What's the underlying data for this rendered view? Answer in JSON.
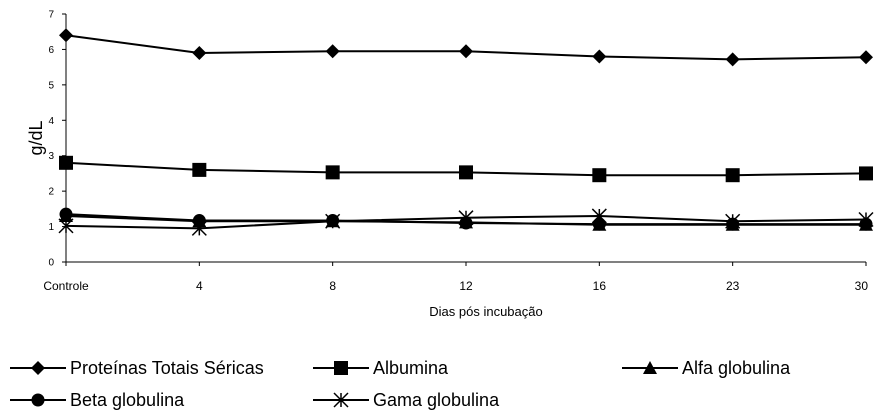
{
  "chart_data": {
    "type": "line",
    "title": "",
    "xlabel": "Dias pós incubação",
    "ylabel": "g/dL",
    "categories": [
      "Controle",
      "4",
      "8",
      "12",
      "16",
      "23",
      "30"
    ],
    "ylim": [
      0,
      7
    ],
    "yticks": [
      "0",
      "1",
      "2",
      "3",
      "4",
      "5",
      "6",
      "7"
    ],
    "grid": false,
    "legend_position": "bottom",
    "series": [
      {
        "name": "Proteínas Totais Séricas",
        "marker": "diamond",
        "color": "#000000",
        "values": [
          6.4,
          5.9,
          5.95,
          5.95,
          5.8,
          5.72,
          5.78
        ]
      },
      {
        "name": "Albumina",
        "marker": "square",
        "color": "#000000",
        "values": [
          2.8,
          2.6,
          2.53,
          2.53,
          2.45,
          2.45,
          2.5
        ]
      },
      {
        "name": "Alfa globulina",
        "marker": "triangle",
        "color": "#000000",
        "values": [
          1.3,
          1.15,
          1.15,
          1.12,
          1.05,
          1.05,
          1.05
        ]
      },
      {
        "name": "Beta globulina",
        "marker": "circle",
        "color": "#000000",
        "values": [
          1.35,
          1.17,
          1.17,
          1.1,
          1.07,
          1.07,
          1.07
        ]
      },
      {
        "name": "Gama globulina",
        "marker": "asterisk",
        "color": "#000000",
        "values": [
          1.02,
          0.95,
          1.15,
          1.25,
          1.3,
          1.15,
          1.2
        ]
      }
    ]
  }
}
